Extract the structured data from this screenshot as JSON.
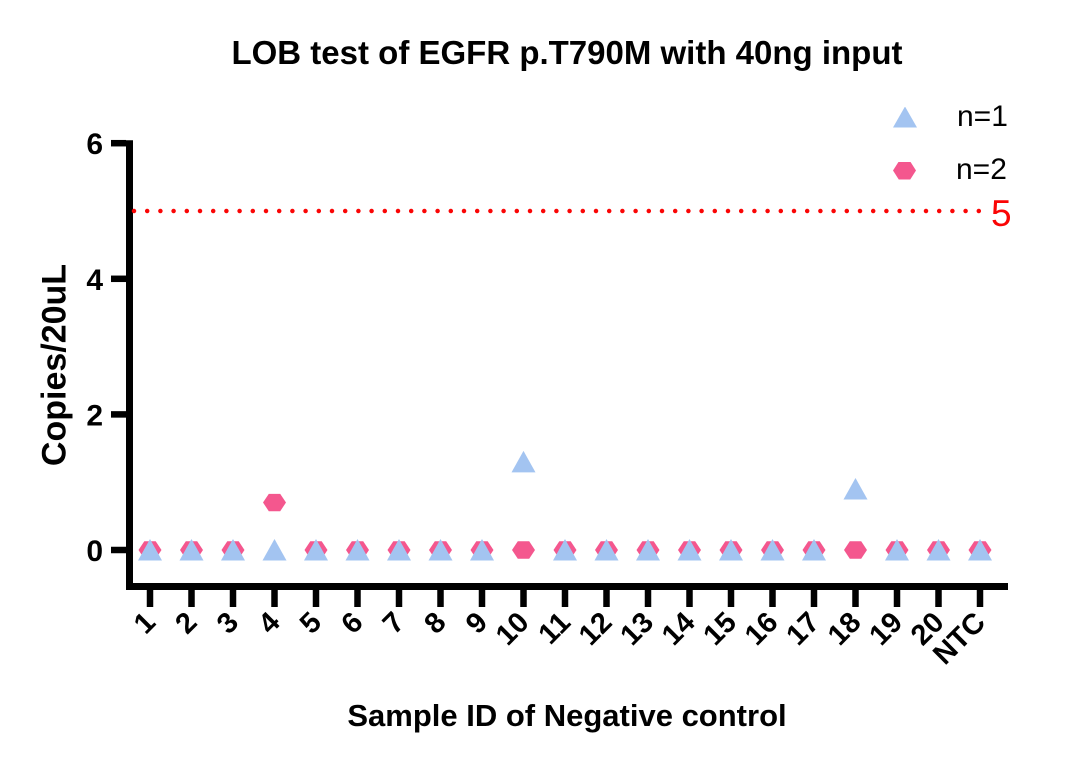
{
  "chart_data": {
    "type": "scatter",
    "title": "LOB test of EGFR p.T790M with 40ng input",
    "xlabel": "Sample ID of Negative control",
    "ylabel": "Copies/20uL",
    "categories": [
      "1",
      "2",
      "3",
      "4",
      "5",
      "6",
      "7",
      "8",
      "9",
      "10",
      "11",
      "12",
      "13",
      "14",
      "15",
      "16",
      "17",
      "18",
      "19",
      "20",
      "NTC"
    ],
    "ylim": [
      0,
      6
    ],
    "yticks": [
      0,
      2,
      4,
      6
    ],
    "grid": false,
    "legend_position": "top-right",
    "axis_color": "#000000",
    "series": [
      {
        "name": "n=1",
        "marker": "triangle",
        "color": "#A3C4F1",
        "values": [
          0,
          0,
          0,
          0,
          0,
          0,
          0,
          0,
          0,
          1.3,
          0,
          0,
          0,
          0,
          0,
          0,
          0,
          0.9,
          0,
          0,
          0
        ]
      },
      {
        "name": "n=2",
        "marker": "hexagon",
        "color": "#F4578E",
        "values": [
          0,
          0,
          0,
          0.7,
          0,
          0,
          0,
          0,
          0,
          0,
          0,
          0,
          0,
          0,
          0,
          0,
          0,
          0,
          0,
          0,
          0
        ]
      }
    ],
    "threshold": {
      "value": 5,
      "label": "5",
      "color": "#FA0505",
      "style": "dotted"
    }
  }
}
